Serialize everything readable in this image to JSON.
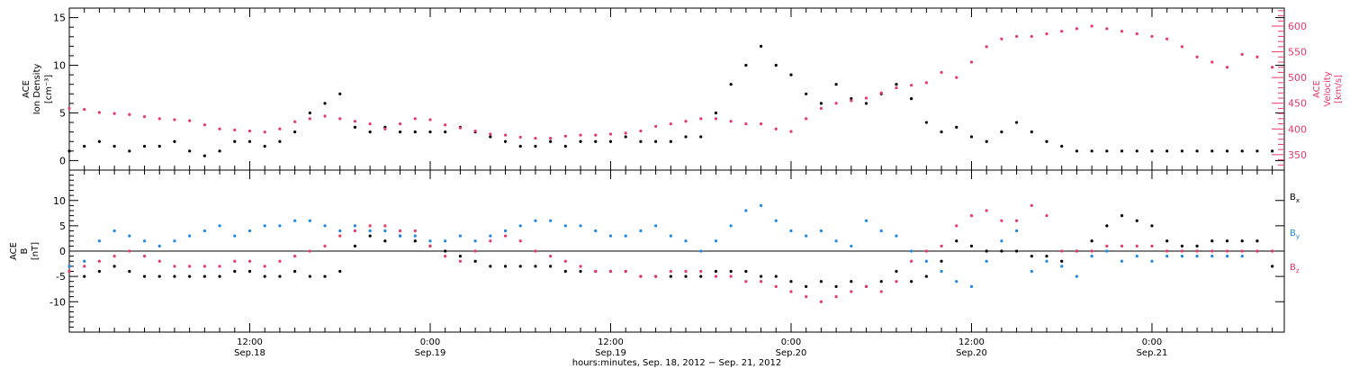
{
  "colors": {
    "black": "#000000",
    "pink": "#e8386a",
    "blue": "#1e88e5"
  },
  "chart_data": [
    {
      "type": "scatter",
      "left_axis": {
        "label_lines": [
          "ACE",
          "Ion Density"
        ],
        "unit_label": "[cm⁻³]",
        "ylim": [
          -1,
          16
        ],
        "ticks": [
          0,
          5,
          10,
          15
        ],
        "color": "#000000"
      },
      "right_axis": {
        "label_lines": [
          "ACE",
          "Velocity"
        ],
        "unit_label": "[km/s]",
        "ylim": [
          320,
          635
        ],
        "ticks": [
          350,
          400,
          450,
          500,
          550,
          600
        ],
        "color": "#e8386a"
      },
      "xlim_hours": [
        0,
        80.8
      ],
      "series": [
        {
          "color": "#000000",
          "axis": "left",
          "x": [
            0,
            1,
            2,
            3,
            4,
            5,
            6,
            7,
            8,
            9,
            10,
            11,
            12,
            13,
            14,
            15,
            16,
            17,
            18,
            19,
            20,
            21,
            22,
            23,
            24,
            25,
            26,
            27,
            28,
            29,
            30,
            31,
            32,
            33,
            34,
            35,
            36,
            37,
            38,
            39,
            40,
            41,
            42,
            43,
            44,
            45,
            46,
            47,
            48,
            49,
            50,
            51,
            52,
            53,
            54,
            55,
            56,
            57,
            58,
            59,
            60,
            61,
            62,
            63,
            64,
            65,
            66,
            67,
            68,
            69,
            70,
            71,
            72,
            73,
            74,
            75,
            76,
            77,
            78,
            79,
            80
          ],
          "y": [
            1.0,
            1.5,
            2.0,
            1.5,
            1.0,
            1.5,
            1.5,
            2.0,
            1.0,
            0.5,
            1.0,
            2.0,
            2.0,
            1.5,
            2.0,
            3.0,
            5.0,
            6.0,
            7.0,
            3.5,
            3.0,
            3.5,
            3.0,
            3.0,
            3.0,
            3.0,
            3.5,
            3.0,
            2.5,
            2.0,
            1.5,
            1.5,
            2.0,
            1.5,
            2.0,
            2.0,
            2.0,
            2.5,
            2.0,
            2.0,
            2.0,
            2.5,
            2.5,
            5.0,
            8.0,
            10.0,
            12.0,
            10.0,
            9.0,
            7.0,
            6.0,
            8.0,
            6.5,
            6.0,
            7.0,
            8.0,
            6.5,
            4.0,
            3.0,
            3.5,
            2.5,
            2.0,
            3.0,
            4.0,
            3.0,
            2.0,
            1.5,
            1.0,
            1.0,
            1.0,
            1.0,
            1.0,
            1.0,
            1.0,
            1.0,
            1.0,
            1.0,
            1.0,
            1.0,
            1.0,
            1.0
          ]
        },
        {
          "color": "#e8386a",
          "axis": "right",
          "x": [
            0,
            1,
            2,
            3,
            4,
            5,
            6,
            7,
            8,
            9,
            10,
            11,
            12,
            13,
            14,
            15,
            16,
            17,
            18,
            19,
            20,
            21,
            22,
            23,
            24,
            25,
            26,
            27,
            28,
            29,
            30,
            31,
            32,
            33,
            34,
            35,
            36,
            37,
            38,
            39,
            40,
            41,
            42,
            43,
            44,
            45,
            46,
            47,
            48,
            49,
            50,
            51,
            52,
            53,
            54,
            55,
            56,
            57,
            58,
            59,
            60,
            61,
            62,
            63,
            64,
            65,
            66,
            67,
            68,
            69,
            70,
            71,
            72,
            73,
            74,
            75,
            76,
            77,
            78,
            79,
            80
          ],
          "y": [
            440,
            438,
            432,
            430,
            428,
            424,
            420,
            418,
            416,
            408,
            400,
            398,
            396,
            394,
            400,
            414,
            420,
            425,
            420,
            415,
            410,
            400,
            410,
            420,
            418,
            408,
            402,
            396,
            390,
            388,
            384,
            382,
            382,
            386,
            388,
            388,
            390,
            392,
            396,
            405,
            410,
            415,
            420,
            420,
            415,
            410,
            410,
            400,
            395,
            420,
            440,
            450,
            455,
            460,
            470,
            480,
            485,
            490,
            510,
            500,
            530,
            560,
            575,
            580,
            580,
            585,
            590,
            595,
            600,
            595,
            590,
            585,
            580,
            575,
            560,
            540,
            530,
            520,
            545,
            540,
            520
          ]
        }
      ]
    },
    {
      "type": "scatter",
      "left_axis": {
        "label_lines": [
          "ACE",
          "B"
        ],
        "unit_label": "[nT]",
        "ylim": [
          -16,
          16
        ],
        "ticks": [
          -10,
          -5,
          0,
          5,
          10
        ],
        "color": "#000000"
      },
      "xlim_hours": [
        0,
        80.8
      ],
      "zero_line": true,
      "legend": {
        "placement": "right",
        "entries": [
          {
            "label": "B",
            "sub": "x",
            "color": "#000000"
          },
          {
            "label": "B",
            "sub": "y",
            "color": "#1e88e5"
          },
          {
            "label": "B",
            "sub": "z",
            "color": "#e8386a"
          }
        ]
      },
      "series": [
        {
          "color": "#000000",
          "x": [
            0,
            1,
            2,
            3,
            4,
            5,
            6,
            7,
            8,
            9,
            10,
            11,
            12,
            13,
            14,
            15,
            16,
            17,
            18,
            19,
            20,
            21,
            22,
            23,
            24,
            25,
            26,
            27,
            28,
            29,
            30,
            31,
            32,
            33,
            34,
            35,
            36,
            37,
            38,
            39,
            40,
            41,
            42,
            43,
            44,
            45,
            46,
            47,
            48,
            49,
            50,
            51,
            52,
            53,
            54,
            55,
            56,
            57,
            58,
            59,
            60,
            61,
            62,
            63,
            64,
            65,
            66,
            67,
            68,
            69,
            70,
            71,
            72,
            73,
            74,
            75,
            76,
            77,
            78,
            79,
            80
          ],
          "y": [
            -4,
            -5,
            -4,
            -3,
            -4,
            -5,
            -5,
            -5,
            -5,
            -5,
            -5,
            -4,
            -4,
            -5,
            -5,
            -4,
            -5,
            -5,
            -4,
            1,
            3,
            2,
            3,
            2,
            1,
            0,
            -1,
            -2,
            -3,
            -3,
            -3,
            -3,
            -3,
            -4,
            -4,
            -4,
            -4,
            -4,
            -5,
            -5,
            -5,
            -5,
            -5,
            -4,
            -4,
            -4,
            -5,
            -5,
            -6,
            -7,
            -6,
            -7,
            -6,
            -7,
            -6,
            -4,
            -6,
            -5,
            -2,
            2,
            1,
            0,
            0,
            0,
            -1,
            -1,
            -2,
            0,
            2,
            5,
            7,
            6,
            5,
            2,
            1,
            1,
            2,
            2,
            2,
            2,
            -3
          ]
        },
        {
          "color": "#1e88e5",
          "x": [
            0,
            1,
            2,
            3,
            4,
            5,
            6,
            7,
            8,
            9,
            10,
            11,
            12,
            13,
            14,
            15,
            16,
            17,
            18,
            19,
            20,
            21,
            22,
            23,
            24,
            25,
            26,
            27,
            28,
            29,
            30,
            31,
            32,
            33,
            34,
            35,
            36,
            37,
            38,
            39,
            40,
            41,
            42,
            43,
            44,
            45,
            46,
            47,
            48,
            49,
            50,
            51,
            52,
            53,
            54,
            55,
            56,
            57,
            58,
            59,
            60,
            61,
            62,
            63,
            64,
            65,
            66,
            67,
            68,
            69,
            70,
            71,
            72,
            73,
            74,
            75,
            76,
            77,
            78,
            79,
            80
          ],
          "y": [
            -3,
            -2,
            2,
            4,
            3,
            2,
            1,
            2,
            3,
            4,
            5,
            3,
            4,
            5,
            5,
            6,
            6,
            5,
            4,
            5,
            4,
            4,
            3,
            3,
            2,
            2,
            3,
            2,
            3,
            4,
            5,
            6,
            6,
            5,
            5,
            4,
            3,
            3,
            4,
            5,
            3,
            2,
            0,
            2,
            5,
            8,
            9,
            6,
            4,
            3,
            4,
            2,
            1,
            6,
            4,
            3,
            0,
            -2,
            -4,
            -6,
            -7,
            -2,
            2,
            4,
            -4,
            -2,
            -3,
            -5,
            -1,
            0,
            -2,
            -1,
            -2,
            -1,
            -1,
            -1,
            -1,
            -1,
            -1,
            0,
            0
          ]
        },
        {
          "color": "#e8386a",
          "x": [
            0,
            1,
            2,
            3,
            4,
            5,
            6,
            7,
            8,
            9,
            10,
            11,
            12,
            13,
            14,
            15,
            16,
            17,
            18,
            19,
            20,
            21,
            22,
            23,
            24,
            25,
            26,
            27,
            28,
            29,
            30,
            31,
            32,
            33,
            34,
            35,
            36,
            37,
            38,
            39,
            40,
            41,
            42,
            43,
            44,
            45,
            46,
            47,
            48,
            49,
            50,
            51,
            52,
            53,
            54,
            55,
            56,
            57,
            58,
            59,
            60,
            61,
            62,
            63,
            64,
            65,
            66,
            67,
            68,
            69,
            70,
            71,
            72,
            73,
            74,
            75,
            76,
            77,
            78,
            79,
            80
          ],
          "y": [
            -4,
            -3,
            -2,
            -1,
            0,
            -1,
            -2,
            -3,
            -3,
            -3,
            -3,
            -2,
            -2,
            -3,
            -2,
            -1,
            0,
            1,
            3,
            4,
            5,
            5,
            4,
            4,
            1,
            -1,
            -2,
            0,
            2,
            3,
            2,
            0,
            -1,
            -2,
            -3,
            -4,
            -4,
            -4,
            -5,
            -5,
            -4,
            -4,
            -4,
            -5,
            -5,
            -6,
            -6,
            -7,
            -8,
            -9,
            -10,
            -9,
            -8,
            -7,
            -8,
            -6,
            -2,
            0,
            1,
            5,
            7,
            8,
            6,
            6,
            9,
            7,
            0,
            0,
            0,
            1,
            1,
            1,
            1,
            0,
            0,
            0,
            0,
            0,
            0,
            0,
            0
          ]
        }
      ]
    }
  ],
  "x_axis": {
    "major_ticks": [
      {
        "hours": 12,
        "time": "12:00",
        "date": "Sep.18"
      },
      {
        "hours": 24,
        "time": "0:00",
        "date": "Sep.19"
      },
      {
        "hours": 36,
        "time": "12:00",
        "date": "Sep.19"
      },
      {
        "hours": 48,
        "time": "0:00",
        "date": "Sep.20"
      },
      {
        "hours": 60,
        "time": "12:00",
        "date": "Sep.20"
      },
      {
        "hours": 72,
        "time": "0:00",
        "date": "Sep.21"
      }
    ],
    "title": "hours:minutes, Sep. 18, 2012 − Sep. 21, 2012"
  }
}
